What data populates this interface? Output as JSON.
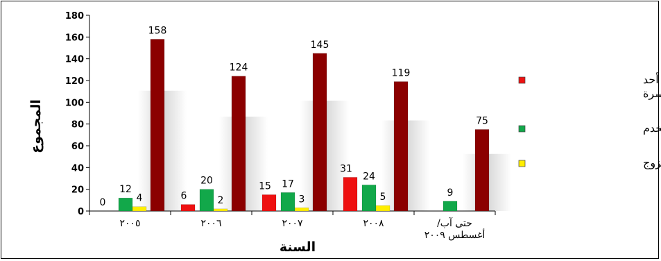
{
  "chart_data": {
    "type": "bar",
    "title": "",
    "xlabel": "السنة",
    "ylabel": "المجموع",
    "ylim": [
      0,
      180
    ],
    "yticks": [
      0,
      20,
      40,
      60,
      80,
      100,
      120,
      140,
      160,
      180
    ],
    "categories": [
      "٢٠٠٥",
      "٢٠٠٦",
      "٢٠٠٧",
      "٢٠٠٨",
      "حتى آب/ أغسطس ٢٠٠٩"
    ],
    "series": [
      {
        "name": "اعتداء ارتكبه أحد أعضاء الأسرة",
        "color": "#ee1111",
        "values": [
          0,
          6,
          15,
          31,
          null
        ]
      },
      {
        "name": "اعتداء على الخدم",
        "color": "#12a84a",
        "values": [
          12,
          20,
          17,
          24,
          9
        ]
      },
      {
        "name": "اعتداء ارتكبه الزوج",
        "color": "#ffee00",
        "values": [
          4,
          2,
          3,
          5,
          null
        ]
      },
      {
        "name": "",
        "color": "#8b0000",
        "values": [
          158,
          124,
          145,
          119,
          75
        ]
      }
    ],
    "legend_position": "right",
    "grid": false
  }
}
